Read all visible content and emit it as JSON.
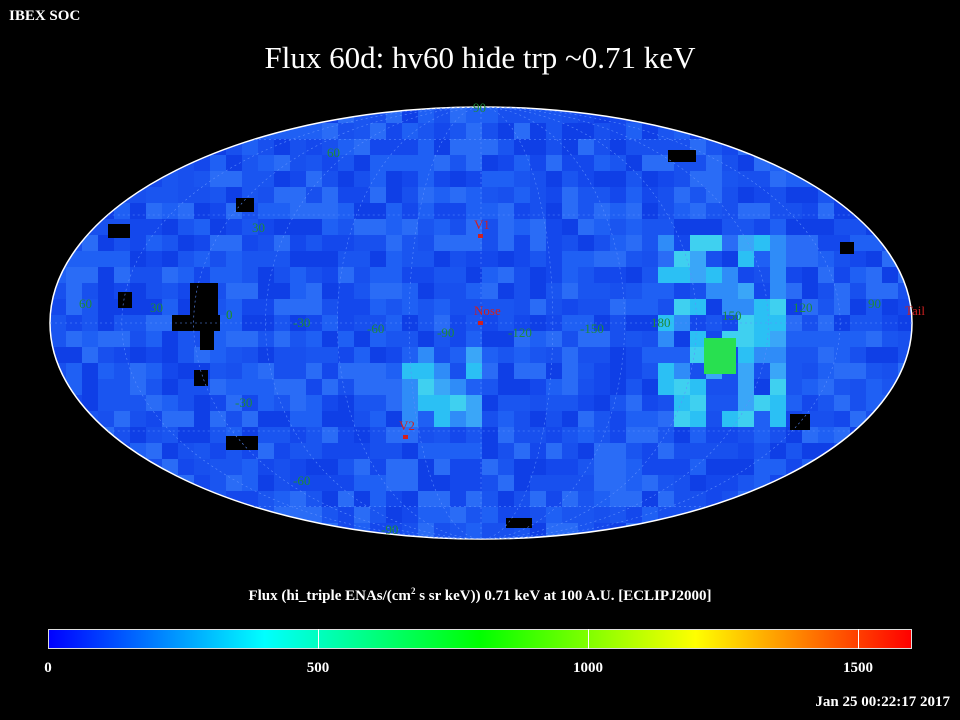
{
  "header": {
    "corner_label": "IBEX SOC",
    "title": "Flux   60d: hv60 hide trp ~0.71 keV"
  },
  "map": {
    "projection": "mollweide",
    "grid_labels": {
      "lat": [
        "90",
        "60",
        "30",
        "0",
        "-30",
        "-60",
        "-90"
      ],
      "lon": [
        "60",
        "30",
        "0",
        "-30",
        "-60",
        "-90",
        "-120",
        "-150",
        "180",
        "150",
        "120",
        "90"
      ]
    },
    "markers": [
      {
        "label": "V1",
        "color": "#d02020"
      },
      {
        "label": "Nose",
        "color": "#d02020"
      },
      {
        "label": "V2",
        "color": "#d02020"
      },
      {
        "label": "Tail",
        "color": "#d02020"
      }
    ],
    "colors": {
      "base": "#1a55f0",
      "grid_label": "#1e8a3a",
      "marker": "#d02020",
      "no_data": "#000000"
    }
  },
  "colorbar": {
    "title_prefix": "Flux (hi_triple ENAs/(cm",
    "title_sup": "2",
    "title_suffix": " s sr keV))  0.71 keV at 100 A.U. [ECLIPJ2000]",
    "min": 0,
    "max": 1600,
    "tick_labels": [
      "0",
      "500",
      "1000",
      "1500"
    ],
    "colors": [
      "#0000ff",
      "#00ffff",
      "#00ff00",
      "#ffff00",
      "#ff0000"
    ]
  },
  "footer": {
    "timestamp": "Jan 25 00:22:17 2017"
  }
}
